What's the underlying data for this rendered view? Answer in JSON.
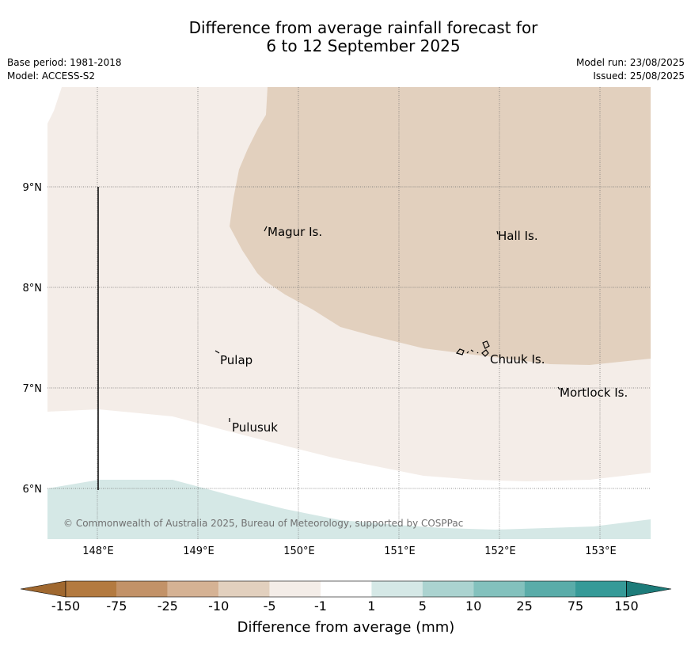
{
  "title_line1": "Difference from average rainfall forecast for",
  "title_line2": "6 to 12 September 2025",
  "meta": {
    "base_period": "Base period: 1981-2018",
    "model": "Model: ACCESS-S2",
    "model_run": "Model run: 23/08/2025",
    "issued": "Issued: 25/08/2025"
  },
  "map": {
    "lat_ticks": [
      "9°N",
      "8°N",
      "7°N",
      "6°N"
    ],
    "lon_ticks": [
      "148°E",
      "149°E",
      "150°E",
      "151°E",
      "152°E",
      "153°E"
    ],
    "places": [
      "Magur Is.",
      "Hall Is.",
      "Pulap",
      "Chuuk Is.",
      "Mortlock Is.",
      "Pulusuk"
    ],
    "copyright": "© Commonwealth of Australia 2025, Bureau of Meteorology, supported by COSPPac"
  },
  "colorbar": {
    "label": "Difference from average (mm)",
    "ticks": [
      "-150",
      "-75",
      "-25",
      "-10",
      "-5",
      "-1",
      "1",
      "5",
      "10",
      "25",
      "75",
      "150"
    ],
    "colors": [
      "#a0682f",
      "#b37a40",
      "#c29268",
      "#d5b294",
      "#e2d0be",
      "#f4ede8",
      "#ffffff",
      "#d5e8e6",
      "#abd3d0",
      "#83c1bd",
      "#5aaca9",
      "#369a98",
      "#1d7c7a"
    ]
  }
}
